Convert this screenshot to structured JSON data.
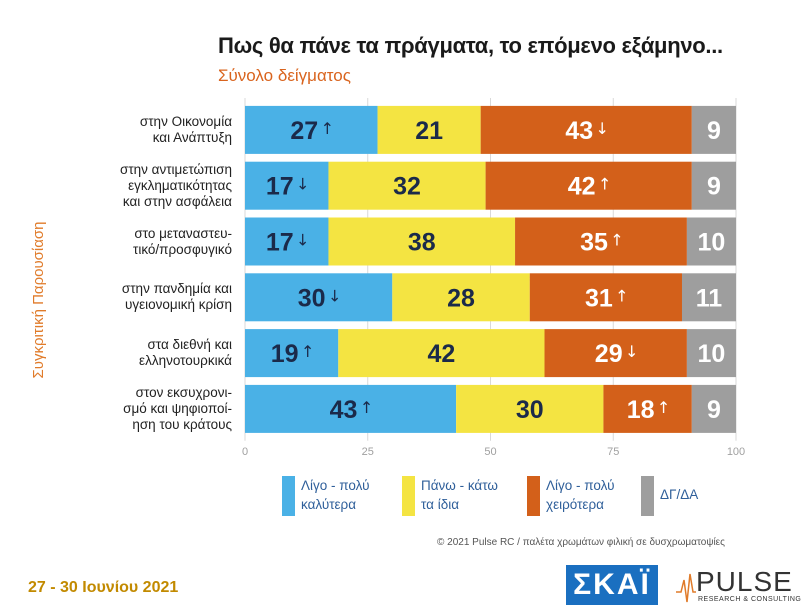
{
  "header": {
    "title": "Πως θα πάνε τα πράγματα, το επόμενο εξάμηνο...",
    "subtitle": "Σύνολο δείγματος"
  },
  "side_label": "Συγκριτική Παρουσίαση",
  "colors": {
    "better": "#4ab1e6",
    "same": "#f4e442",
    "worse": "#d3601a",
    "dk": "#9e9e9e"
  },
  "chart_data": {
    "type": "bar",
    "orientation": "horizontal",
    "stacked": true,
    "categories": [
      "στην Οικονομία και Ανάπτυξη",
      "στην αντιμετώπιση εγκληματικότητας και στην ασφάλεια",
      "στο μεταναστευ-τικό/προσφυγικό",
      "στην πανδημία και υγειονομική κρίση",
      "στα διεθνή και ελληνοτουρκικά",
      "στον εκσυχρονι-σμό και ψηφιοποί-ηση του κράτους"
    ],
    "category_lines": [
      [
        "στην Οικονομία",
        "και Ανάπτυξη"
      ],
      [
        "στην αντιμετώπιση",
        "εγκληματικότητας",
        "και στην ασφάλεια"
      ],
      [
        "στο μεταναστευ-",
        "τικό/προσφυγικό"
      ],
      [
        "στην πανδημία και",
        "υγειονομική κρίση"
      ],
      [
        "στα διεθνή και",
        "ελληνοτουρκικά"
      ],
      [
        "στον εκσυχρονι-",
        "σμό και ψηφιοποί-",
        "ηση του κράτους"
      ]
    ],
    "series": [
      {
        "name": "Λίγο - πολύ καλύτερα",
        "values": [
          27,
          17,
          17,
          30,
          19,
          43
        ],
        "trend": [
          "up",
          "down",
          "down",
          "down",
          "up",
          "up"
        ]
      },
      {
        "name": "Πάνω - κάτω τα ίδια",
        "values": [
          21,
          32,
          38,
          28,
          42,
          30
        ],
        "trend": [
          "",
          "",
          "",
          "",
          "",
          ""
        ]
      },
      {
        "name": "Λίγο - πολύ χειρότερα",
        "values": [
          43,
          42,
          35,
          31,
          29,
          18
        ],
        "trend": [
          "down",
          "up",
          "up",
          "up",
          "down",
          "up"
        ]
      },
      {
        "name": "ΔΓ/ΔΑ",
        "values": [
          9,
          9,
          10,
          11,
          10,
          9
        ],
        "trend": [
          "",
          "",
          "",
          "",
          "",
          ""
        ]
      }
    ],
    "x_ticks": [
      "0",
      "25",
      "50",
      "75",
      "100"
    ],
    "xlim": [
      0,
      100
    ],
    "grid": true,
    "legend_position": "bottom"
  },
  "legend": {
    "better_lines": [
      "Λίγο - πολύ",
      "καλύτερα"
    ],
    "same_lines": [
      "Πάνω - κάτω",
      "τα ίδια"
    ],
    "worse_lines": [
      "Λίγο - πολύ",
      "χειρότερα"
    ],
    "dk_lines": [
      "ΔΓ/ΔΑ"
    ]
  },
  "footer": {
    "credit": "© 2021 Pulse RC  /  παλέτα χρωμάτων φιλική σε δυσχρωματοψίες",
    "date": "27 - 30 Ιουνίου 2021",
    "skai_logo": "ΣΚΑΪ",
    "pulse_logo": "PULSE",
    "pulse_logo_sub": "RESEARCH & CONSULTING"
  }
}
